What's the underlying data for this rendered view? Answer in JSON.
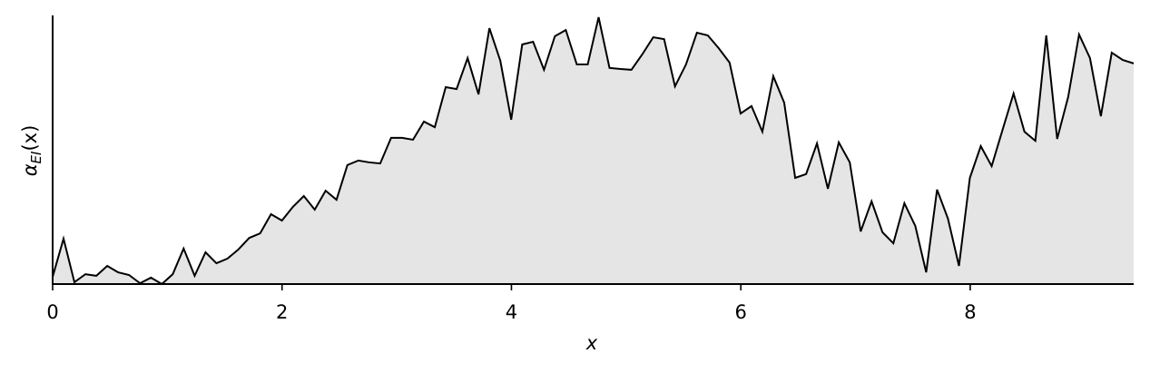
{
  "chart_data": {
    "type": "area",
    "xlabel": "x",
    "ylabel": {
      "base": "α",
      "subscript": "EI",
      "suffix": "(x)"
    },
    "x": [
      0,
      0.095,
      0.19,
      0.286,
      0.381,
      0.476,
      0.571,
      0.666,
      0.762,
      0.857,
      0.952,
      1.047,
      1.142,
      1.238,
      1.333,
      1.428,
      1.523,
      1.618,
      1.714,
      1.809,
      1.904,
      1.999,
      2.094,
      2.19,
      2.285,
      2.38,
      2.475,
      2.57,
      2.666,
      2.761,
      2.856,
      2.951,
      3.046,
      3.142,
      3.237,
      3.332,
      3.427,
      3.522,
      3.618,
      3.713,
      3.808,
      3.903,
      3.998,
      4.094,
      4.189,
      4.284,
      4.379,
      4.474,
      4.57,
      4.665,
      4.76,
      4.855,
      4.95,
      5.046,
      5.141,
      5.236,
      5.331,
      5.426,
      5.522,
      5.617,
      5.712,
      5.807,
      5.902,
      5.998,
      6.093,
      6.188,
      6.283,
      6.378,
      6.474,
      6.569,
      6.664,
      6.759,
      6.854,
      6.95,
      7.045,
      7.14,
      7.235,
      7.33,
      7.426,
      7.521,
      7.616,
      7.711,
      7.806,
      7.902,
      7.997,
      8.092,
      8.187,
      8.282,
      8.378,
      8.473,
      8.568,
      8.663,
      8.758,
      8.854,
      8.949,
      9.044,
      9.139,
      9.234,
      9.33,
      9.425
    ],
    "values": [
      0.027,
      0.17,
      0.007,
      0.037,
      0.031,
      0.068,
      0.044,
      0.034,
      0.003,
      0.024,
      0,
      0.037,
      0.133,
      0.031,
      0.119,
      0.078,
      0.095,
      0.129,
      0.173,
      0.19,
      0.262,
      0.238,
      0.289,
      0.33,
      0.279,
      0.35,
      0.316,
      0.446,
      0.463,
      0.456,
      0.452,
      0.548,
      0.548,
      0.541,
      0.609,
      0.588,
      0.738,
      0.731,
      0.847,
      0.711,
      0.959,
      0.837,
      0.616,
      0.898,
      0.908,
      0.803,
      0.929,
      0.952,
      0.823,
      0.823,
      1.0,
      0.81,
      0.806,
      0.803,
      0.861,
      0.925,
      0.918,
      0.741,
      0.823,
      0.942,
      0.932,
      0.884,
      0.83,
      0.639,
      0.667,
      0.571,
      0.779,
      0.68,
      0.398,
      0.412,
      0.527,
      0.357,
      0.531,
      0.456,
      0.197,
      0.31,
      0.194,
      0.153,
      0.303,
      0.218,
      0.044,
      0.354,
      0.245,
      0.068,
      0.398,
      0.517,
      0.442,
      0.578,
      0.714,
      0.571,
      0.537,
      0.932,
      0.544,
      0.701,
      0.935,
      0.847,
      0.629,
      0.867,
      0.84,
      0.827
    ],
    "color": "#000000",
    "fill": "#e5e5e5",
    "xlim": [
      0,
      9.425
    ],
    "xticks": [
      0,
      2,
      4,
      6,
      8
    ],
    "ylim": [
      0,
      1
    ],
    "grid": false
  }
}
